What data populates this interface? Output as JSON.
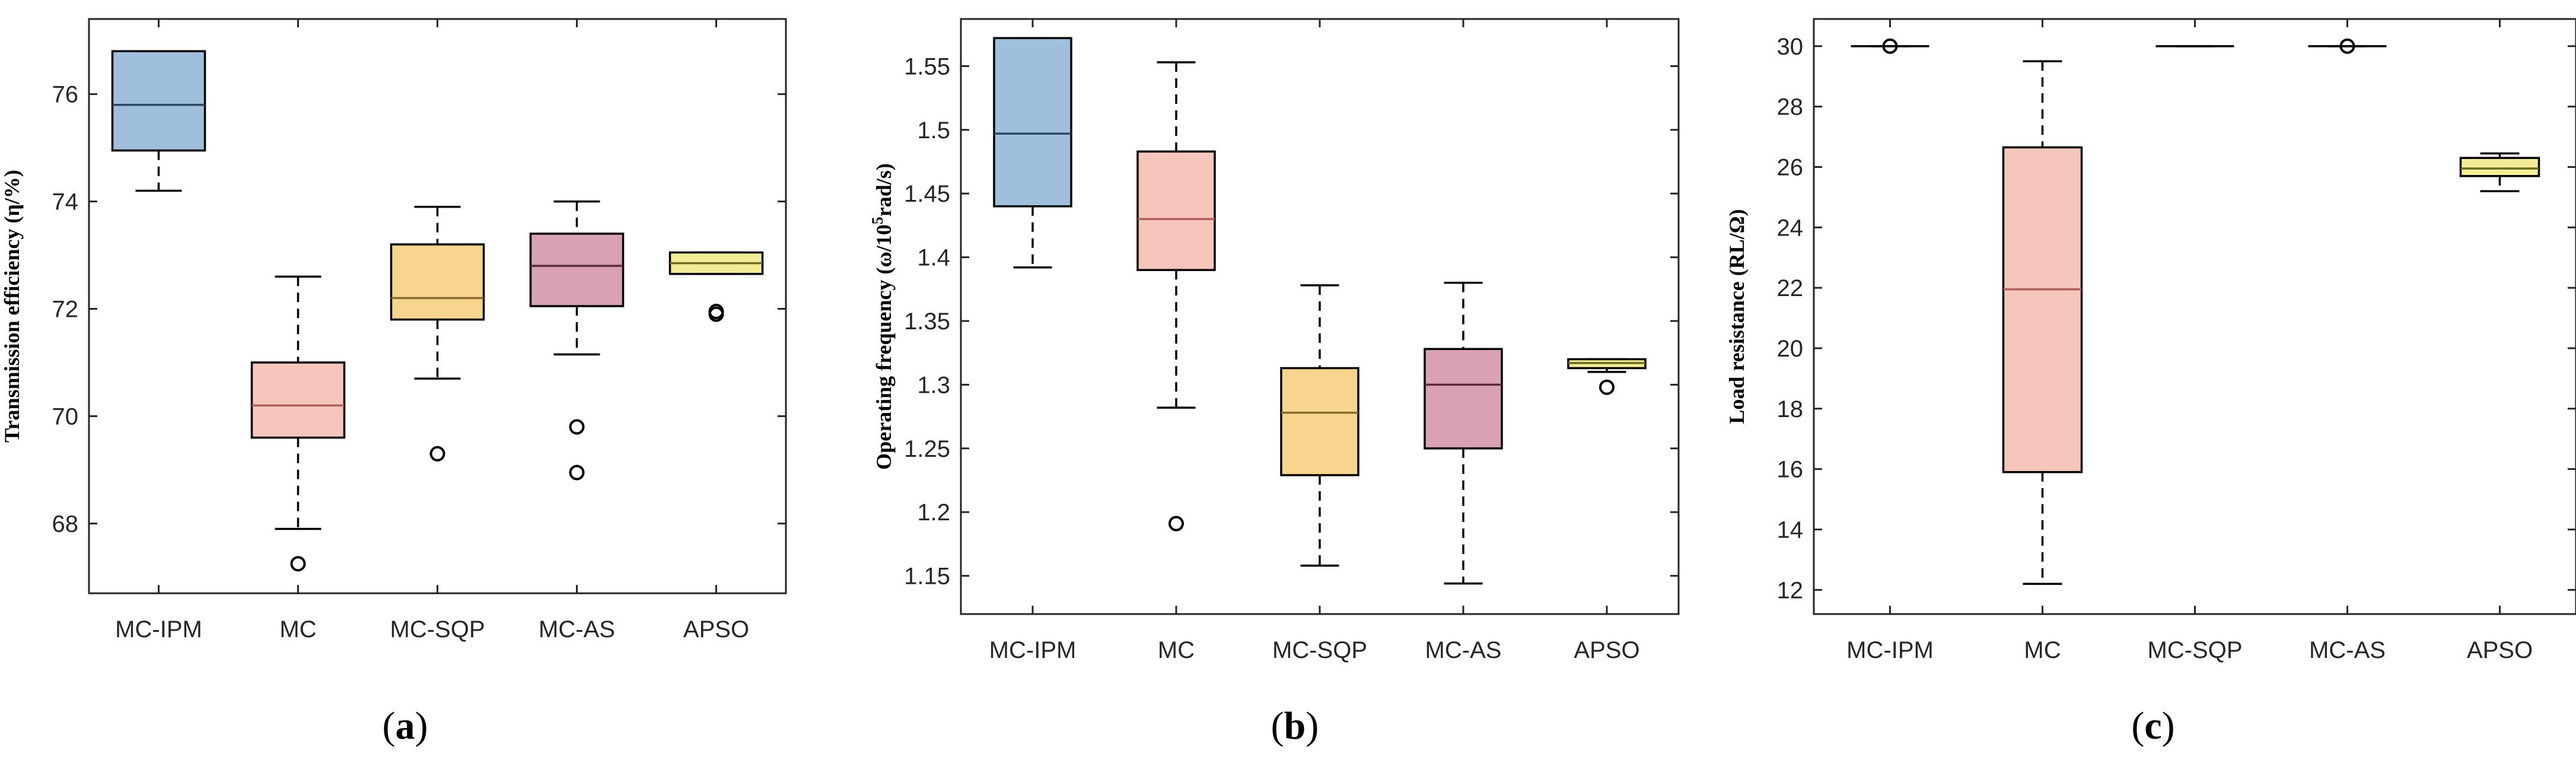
{
  "chart_data": [
    {
      "type": "box",
      "panel_label": "a",
      "ylabel_main": "Transmission efficiency (η/%)",
      "ylim": [
        66.7,
        77.4
      ],
      "yticks": [
        68,
        70,
        72,
        74,
        76
      ],
      "categories": [
        "MC-IPM",
        "MC",
        "MC-SQP",
        "MC-AS",
        "APSO"
      ],
      "boxes": [
        {
          "name": "MC-IPM",
          "q1": 74.95,
          "median": 75.8,
          "q3": 76.8,
          "whisker_low": 74.2,
          "whisker_high": 76.8,
          "outliers": [],
          "fill": "#9fbfdc",
          "median_color": "#2a4a6a"
        },
        {
          "name": "MC",
          "q1": 69.6,
          "median": 70.2,
          "q3": 71.0,
          "whisker_low": 67.9,
          "whisker_high": 72.6,
          "outliers": [
            67.25
          ],
          "fill": "#f6c6bd",
          "median_color": "#b0605a"
        },
        {
          "name": "MC-SQP",
          "q1": 71.8,
          "median": 72.2,
          "q3": 73.2,
          "whisker_low": 70.7,
          "whisker_high": 73.9,
          "outliers": [
            69.3
          ],
          "fill": "#f7d58e",
          "median_color": "#8a6a2a"
        },
        {
          "name": "MC-AS",
          "q1": 72.05,
          "median": 72.8,
          "q3": 73.4,
          "whisker_low": 71.15,
          "whisker_high": 74.0,
          "outliers": [
            69.8,
            68.95
          ],
          "fill": "#d9a2b4",
          "median_color": "#5a2a3a"
        },
        {
          "name": "APSO",
          "q1": 72.65,
          "median": 72.85,
          "q3": 73.05,
          "whisker_low": 72.65,
          "whisker_high": 73.05,
          "outliers": [
            71.95,
            71.9
          ],
          "fill": "#f3ec97",
          "median_color": "#6a6a20"
        }
      ]
    },
    {
      "type": "box",
      "panel_label": "b",
      "ylabel_main": "Operating frequency (ω/10",
      "ylabel_sup": "5",
      "ylabel_tail": "rad/s)",
      "ylim": [
        1.12,
        1.587
      ],
      "yticks": [
        1.15,
        1.2,
        1.25,
        1.3,
        1.35,
        1.4,
        1.45,
        1.5,
        1.55
      ],
      "ytick_labels": [
        "1.15",
        "1.2",
        "1.25",
        "1.3",
        "1.35",
        "1.4",
        "1.45",
        "1.5",
        "1.55"
      ],
      "categories": [
        "MC-IPM",
        "MC",
        "MC-SQP",
        "MC-AS",
        "APSO"
      ],
      "boxes": [
        {
          "name": "MC-IPM",
          "q1": 1.44,
          "median": 1.497,
          "q3": 1.572,
          "whisker_low": 1.392,
          "whisker_high": 1.572,
          "outliers": [],
          "fill": "#9fbfdc",
          "median_color": "#2a4a6a"
        },
        {
          "name": "MC",
          "q1": 1.39,
          "median": 1.43,
          "q3": 1.483,
          "whisker_low": 1.282,
          "whisker_high": 1.553,
          "outliers": [
            1.191
          ],
          "fill": "#f6c6bd",
          "median_color": "#b0605a"
        },
        {
          "name": "MC-SQP",
          "q1": 1.229,
          "median": 1.278,
          "q3": 1.313,
          "whisker_low": 1.158,
          "whisker_high": 1.378,
          "outliers": [],
          "fill": "#f7d58e",
          "median_color": "#8a6a2a"
        },
        {
          "name": "MC-AS",
          "q1": 1.25,
          "median": 1.3,
          "q3": 1.328,
          "whisker_low": 1.144,
          "whisker_high": 1.38,
          "outliers": [],
          "fill": "#d9a2b4",
          "median_color": "#5a2a3a"
        },
        {
          "name": "APSO",
          "q1": 1.313,
          "median": 1.317,
          "q3": 1.32,
          "whisker_low": 1.31,
          "whisker_high": 1.32,
          "outliers": [
            1.298
          ],
          "fill": "#f3ec97",
          "median_color": "#6a6a20"
        }
      ]
    },
    {
      "type": "box",
      "panel_label": "c",
      "ylabel_main": "Load resistance (RL/Ω)",
      "ylim": [
        11.2,
        30.9
      ],
      "yticks": [
        12,
        14,
        16,
        18,
        20,
        22,
        24,
        26,
        28,
        30
      ],
      "categories": [
        "MC-IPM",
        "MC",
        "MC-SQP",
        "MC-AS",
        "APSO"
      ],
      "boxes": [
        {
          "name": "MC-IPM",
          "q1": 30,
          "median": 30,
          "q3": 30,
          "whisker_low": 30,
          "whisker_high": 30,
          "outliers": [
            30
          ],
          "fill": "#9fbfdc",
          "median_color": "#2a4a6a"
        },
        {
          "name": "MC",
          "q1": 15.9,
          "median": 21.95,
          "q3": 26.65,
          "whisker_low": 12.2,
          "whisker_high": 29.5,
          "outliers": [],
          "fill": "#f6c6bd",
          "median_color": "#b0605a"
        },
        {
          "name": "MC-SQP",
          "q1": 30,
          "median": 30,
          "q3": 30,
          "whisker_low": 30,
          "whisker_high": 30,
          "outliers": [],
          "fill": "#f7d58e",
          "median_color": "#8a6a2a"
        },
        {
          "name": "MC-AS",
          "q1": 30,
          "median": 30,
          "q3": 30,
          "whisker_low": 30,
          "whisker_high": 30,
          "outliers": [
            30
          ],
          "fill": "#d9a2b4",
          "median_color": "#5a2a3a"
        },
        {
          "name": "APSO",
          "q1": 25.7,
          "median": 25.95,
          "q3": 26.3,
          "whisker_low": 25.2,
          "whisker_high": 26.45,
          "outliers": [],
          "fill": "#f3ec97",
          "median_color": "#6a6a20"
        }
      ]
    }
  ]
}
